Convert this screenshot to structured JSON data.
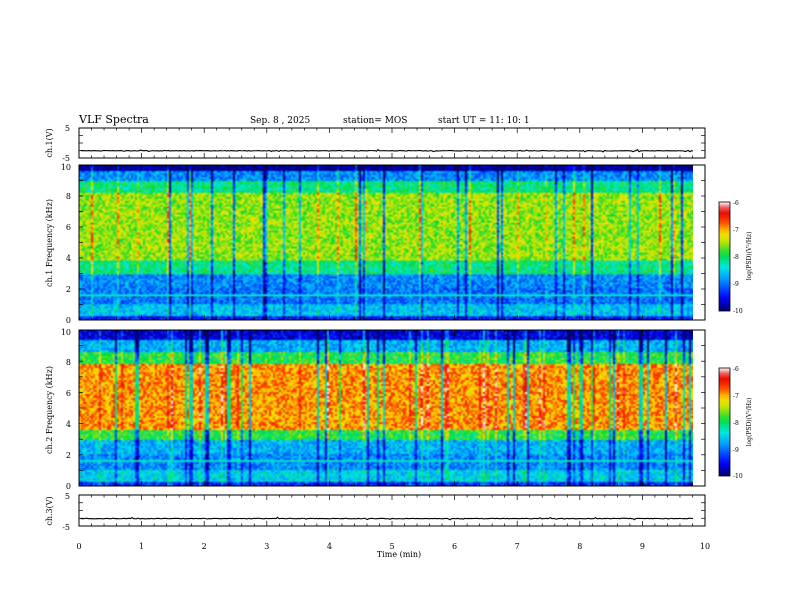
{
  "header": {
    "title": "VLF Spectra",
    "date": "Sep. 8 , 2025",
    "station": "station= MOS",
    "start": "start UT = 11: 10: 1"
  },
  "chart_data": [
    {
      "type": "line",
      "name": "ch.1 voltage",
      "ylabel": "ch.1(V)",
      "ylim": [
        -5,
        5
      ],
      "yticks": [
        "5",
        "-5"
      ],
      "xlim": [
        0,
        10
      ],
      "level": -2.6
    },
    {
      "type": "heatmap",
      "ylabel": "ch.1 Frequency (kHz)",
      "ylim": [
        0,
        10
      ],
      "yticks": [
        "0",
        "2",
        "4",
        "6",
        "8",
        "10"
      ],
      "xlim": [
        0,
        10
      ],
      "data_end_min": 9.82,
      "colorbar": {
        "label": "log(PSD)(V²/Hz)",
        "ticks": [
          "-6",
          "-7",
          "-8",
          "-9",
          "-10"
        ],
        "range": [
          -10,
          -6
        ]
      },
      "bands": [
        {
          "f0": 0.0,
          "f1": 0.3,
          "level": -9.4
        },
        {
          "f0": 0.3,
          "f1": 1.0,
          "level": -8.6
        },
        {
          "f0": 1.0,
          "f1": 2.0,
          "level": -9.0
        },
        {
          "f0": 2.0,
          "f1": 2.9,
          "level": -8.9
        },
        {
          "f0": 2.9,
          "f1": 3.8,
          "level": -8.1
        },
        {
          "f0": 3.8,
          "f1": 8.2,
          "level": -7.55
        },
        {
          "f0": 8.2,
          "f1": 9.0,
          "level": -8.1
        },
        {
          "f0": 9.0,
          "f1": 9.6,
          "level": -8.9
        },
        {
          "f0": 9.6,
          "f1": 10.0,
          "level": -9.9
        }
      ]
    },
    {
      "type": "heatmap",
      "ylabel": "ch.2 Frequency (kHz)",
      "ylim": [
        0,
        10
      ],
      "yticks": [
        "0",
        "2",
        "4",
        "6",
        "8",
        "10"
      ],
      "xlim": [
        0,
        10
      ],
      "data_end_min": 9.82,
      "colorbar": {
        "label": "log(PSD)(V²/Hz)",
        "ticks": [
          "-6",
          "-7",
          "-8",
          "-9",
          "-10"
        ],
        "range": [
          -10,
          -6
        ]
      },
      "bands": [
        {
          "f0": 0.0,
          "f1": 0.3,
          "level": -9.3
        },
        {
          "f0": 0.3,
          "f1": 1.0,
          "level": -8.5
        },
        {
          "f0": 1.0,
          "f1": 2.0,
          "level": -8.9
        },
        {
          "f0": 2.0,
          "f1": 2.9,
          "level": -8.7
        },
        {
          "f0": 2.9,
          "f1": 3.6,
          "level": -7.9
        },
        {
          "f0": 3.6,
          "f1": 7.8,
          "level": -6.95
        },
        {
          "f0": 7.8,
          "f1": 8.6,
          "level": -7.9
        },
        {
          "f0": 8.6,
          "f1": 9.4,
          "level": -8.7
        },
        {
          "f0": 9.4,
          "f1": 10.0,
          "level": -9.6
        }
      ]
    },
    {
      "type": "line",
      "name": "ch.3 voltage",
      "ylabel": "ch.3(V)",
      "ylim": [
        -5,
        5
      ],
      "yticks": [
        "5",
        "-5"
      ],
      "xlim": [
        0,
        10
      ],
      "level": -2.6,
      "xlabel": "Time (min)",
      "xticks": [
        "0",
        "1",
        "2",
        "3",
        "4",
        "5",
        "6",
        "7",
        "8",
        "9",
        "10"
      ]
    }
  ]
}
